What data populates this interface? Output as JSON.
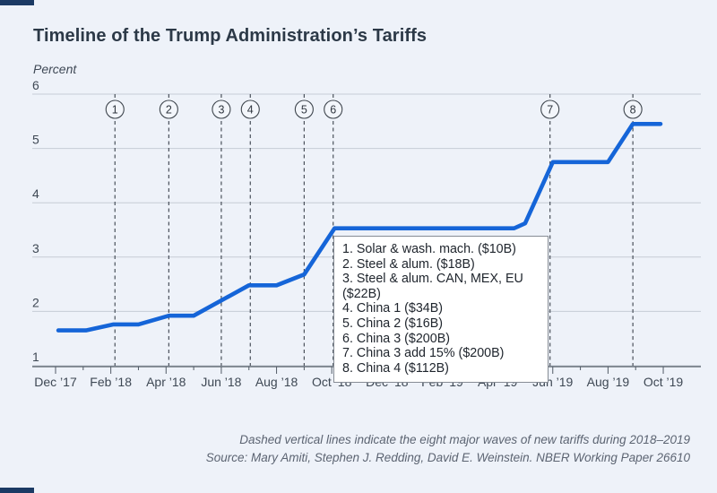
{
  "chart_data": {
    "type": "line",
    "title": "Timeline of the Trump Administration’s Tariffs",
    "y_unit": "Percent",
    "ylabel": "Percent",
    "xlabel": "",
    "ylim": [
      1,
      6
    ],
    "y_ticks": [
      6,
      5,
      4,
      3,
      2,
      1
    ],
    "grid": "horizontal",
    "x_tick_labels": [
      "Dec ’17",
      "Feb ’18",
      "Apr ’18",
      "Jun ’18",
      "Aug ’18",
      "Oct ’18",
      "Dec ’18",
      "Feb ’19",
      "Apr ’19",
      "Jun ’19",
      "Aug ’19",
      "Oct ’19"
    ],
    "x_range_months": 22,
    "line_color": "#1565d8",
    "legend_position": "inside-center-right",
    "series": [
      {
        "points_month_percent": [
          [
            0.1,
            1.65
          ],
          [
            1.1,
            1.65
          ],
          [
            2.1,
            1.76
          ],
          [
            3.0,
            1.76
          ],
          [
            4.1,
            1.92
          ],
          [
            5.0,
            1.92
          ],
          [
            7.0,
            2.48
          ],
          [
            8.0,
            2.48
          ],
          [
            9.0,
            2.68
          ],
          [
            10.1,
            3.53
          ],
          [
            16.6,
            3.53
          ],
          [
            17.0,
            3.62
          ],
          [
            18.0,
            4.75
          ],
          [
            20.0,
            4.75
          ],
          [
            20.9,
            5.45
          ],
          [
            21.9,
            5.45
          ]
        ]
      }
    ],
    "events": [
      {
        "num": "1",
        "month": 2.15,
        "label": "Solar & wash. mach. ($10B)"
      },
      {
        "num": "2",
        "month": 4.1,
        "label": "Steel & alum. ($18B)"
      },
      {
        "num": "3",
        "month": 6.0,
        "label": "Steel & alum. CAN, MEX, EU ($22B)"
      },
      {
        "num": "4",
        "month": 7.05,
        "label": "China 1 ($34B)"
      },
      {
        "num": "5",
        "month": 9.0,
        "label": "China 2 ($16B)"
      },
      {
        "num": "6",
        "month": 10.05,
        "label": "China 3 ($200B)"
      },
      {
        "num": "7",
        "month": 17.9,
        "label": "China 3 add 15% ($200B)"
      },
      {
        "num": "8",
        "month": 20.9,
        "label": "China 4 ($112B)"
      }
    ]
  },
  "footnotes": {
    "note": "Dashed vertical lines indicate the eight major waves of new tariffs during 2018–2019",
    "source": "Source: Mary Amiti, Stephen J. Redding, David E. Weinstein. NBER Working Paper 26610"
  }
}
